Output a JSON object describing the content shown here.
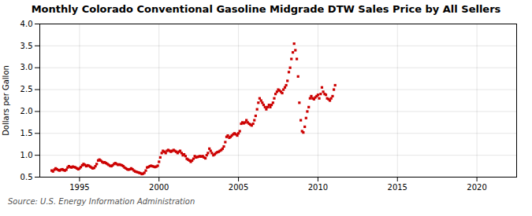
{
  "chart_data": {
    "type": "scatter",
    "title": "Monthly Colorado Conventional Gasoline Midgrade DTW Sales Price by All Sellers",
    "ylabel": "Dollars per Gallon",
    "source": "Source: U.S. Energy Information Administration",
    "color": "#CC0000",
    "marker": "square",
    "grid": true,
    "xlim": [
      1992.5,
      2022.5
    ],
    "ylim": [
      0.5,
      4.0
    ],
    "xticks": [
      1995,
      2000,
      2005,
      2010,
      2015,
      2020
    ],
    "yticks": [
      0.5,
      {
        "value": 1.0,
        "label": "1.0"
      },
      1.5,
      {
        "value": 2.0,
        "label": "2.0"
      },
      2.5,
      {
        "value": 3.0,
        "label": "3.0"
      },
      3.5,
      {
        "value": 4.0,
        "label": "4.0"
      }
    ],
    "x": [
      1993.25,
      1993.33,
      1993.42,
      1993.5,
      1993.58,
      1993.67,
      1993.75,
      1993.83,
      1993.92,
      1994.0,
      1994.08,
      1994.17,
      1994.25,
      1994.33,
      1994.42,
      1994.5,
      1994.58,
      1994.67,
      1994.75,
      1994.83,
      1994.92,
      1995.0,
      1995.08,
      1995.17,
      1995.25,
      1995.33,
      1995.42,
      1995.5,
      1995.58,
      1995.67,
      1995.75,
      1995.83,
      1995.92,
      1996.0,
      1996.08,
      1996.17,
      1996.25,
      1996.33,
      1996.42,
      1996.5,
      1996.58,
      1996.67,
      1996.75,
      1996.83,
      1996.92,
      1997.0,
      1997.08,
      1997.17,
      1997.25,
      1997.33,
      1997.42,
      1997.5,
      1997.58,
      1997.67,
      1997.75,
      1997.83,
      1997.92,
      1998.0,
      1998.08,
      1998.17,
      1998.25,
      1998.33,
      1998.42,
      1998.5,
      1998.58,
      1998.67,
      1998.75,
      1998.83,
      1998.92,
      1999.0,
      1999.08,
      1999.17,
      1999.25,
      1999.33,
      1999.42,
      1999.5,
      1999.58,
      1999.67,
      1999.75,
      1999.83,
      1999.92,
      2000.0,
      2000.08,
      2000.17,
      2000.25,
      2000.33,
      2000.42,
      2000.5,
      2000.58,
      2000.67,
      2000.75,
      2000.83,
      2000.92,
      2001.0,
      2001.08,
      2001.17,
      2001.25,
      2001.33,
      2001.42,
      2001.5,
      2001.58,
      2001.67,
      2001.75,
      2001.83,
      2001.92,
      2002.0,
      2002.08,
      2002.17,
      2002.25,
      2002.33,
      2002.42,
      2002.5,
      2002.58,
      2002.67,
      2002.75,
      2002.83,
      2002.92,
      2003.0,
      2003.08,
      2003.17,
      2003.25,
      2003.33,
      2003.42,
      2003.5,
      2003.58,
      2003.67,
      2003.75,
      2003.83,
      2003.92,
      2004.0,
      2004.08,
      2004.17,
      2004.25,
      2004.33,
      2004.42,
      2004.5,
      2004.58,
      2004.67,
      2004.75,
      2004.83,
      2004.92,
      2005.0,
      2005.08,
      2005.17,
      2005.25,
      2005.33,
      2005.42,
      2005.5,
      2005.58,
      2005.67,
      2005.75,
      2005.83,
      2005.92,
      2006.0,
      2006.08,
      2006.17,
      2006.25,
      2006.33,
      2006.42,
      2006.5,
      2006.58,
      2006.67,
      2006.75,
      2006.83,
      2006.92,
      2007.0,
      2007.08,
      2007.17,
      2007.25,
      2007.33,
      2007.42,
      2007.5,
      2007.58,
      2007.67,
      2007.75,
      2007.83,
      2007.92,
      2008.0,
      2008.08,
      2008.17,
      2008.25,
      2008.33,
      2008.42,
      2008.5,
      2008.58,
      2008.67,
      2008.75,
      2008.83,
      2008.92,
      2009.0,
      2009.08,
      2009.17,
      2009.25,
      2009.33,
      2009.42,
      2009.5,
      2009.58,
      2009.67,
      2009.75,
      2009.83,
      2009.92,
      2010.0,
      2010.08,
      2010.17,
      2010.25,
      2010.33,
      2010.42,
      2010.5,
      2010.58,
      2010.67,
      2010.75,
      2010.83,
      2010.92,
      2011.0,
      2011.08
    ],
    "values": [
      0.65,
      0.63,
      0.67,
      0.7,
      0.68,
      0.66,
      0.65,
      0.67,
      0.68,
      0.66,
      0.65,
      0.67,
      0.72,
      0.75,
      0.73,
      0.72,
      0.74,
      0.73,
      0.72,
      0.7,
      0.68,
      0.7,
      0.73,
      0.77,
      0.8,
      0.78,
      0.75,
      0.77,
      0.76,
      0.74,
      0.72,
      0.7,
      0.71,
      0.75,
      0.8,
      0.88,
      0.9,
      0.88,
      0.85,
      0.83,
      0.84,
      0.82,
      0.8,
      0.78,
      0.76,
      0.75,
      0.77,
      0.8,
      0.82,
      0.8,
      0.78,
      0.79,
      0.78,
      0.77,
      0.75,
      0.72,
      0.7,
      0.68,
      0.67,
      0.68,
      0.7,
      0.68,
      0.65,
      0.63,
      0.62,
      0.61,
      0.6,
      0.59,
      0.57,
      0.58,
      0.6,
      0.65,
      0.72,
      0.73,
      0.75,
      0.76,
      0.75,
      0.74,
      0.73,
      0.74,
      0.76,
      0.85,
      0.95,
      1.05,
      1.1,
      1.08,
      1.05,
      1.1,
      1.12,
      1.1,
      1.08,
      1.1,
      1.12,
      1.1,
      1.08,
      1.05,
      1.08,
      1.1,
      1.05,
      1.0,
      1.02,
      0.98,
      0.92,
      0.9,
      0.88,
      0.85,
      0.88,
      0.92,
      0.98,
      0.95,
      0.96,
      0.97,
      0.98,
      0.97,
      0.98,
      0.95,
      0.93,
      1.0,
      1.05,
      1.15,
      1.1,
      1.05,
      1.0,
      1.02,
      1.05,
      1.07,
      1.08,
      1.1,
      1.12,
      1.15,
      1.2,
      1.3,
      1.42,
      1.45,
      1.4,
      1.42,
      1.45,
      1.48,
      1.5,
      1.48,
      1.45,
      1.5,
      1.55,
      1.72,
      1.75,
      1.73,
      1.75,
      1.8,
      1.75,
      1.72,
      1.7,
      1.68,
      1.72,
      1.8,
      1.9,
      2.05,
      2.2,
      2.3,
      2.25,
      2.2,
      2.15,
      2.1,
      2.05,
      2.1,
      2.15,
      2.1,
      2.15,
      2.2,
      2.3,
      2.4,
      2.45,
      2.5,
      2.48,
      2.45,
      2.42,
      2.5,
      2.55,
      2.6,
      2.7,
      2.9,
      3.0,
      3.2,
      3.35,
      3.55,
      3.4,
      3.2,
      2.8,
      2.2,
      1.8,
      1.55,
      1.52,
      1.65,
      1.85,
      2.0,
      2.1,
      2.3,
      2.35,
      2.3,
      2.28,
      2.32,
      2.35,
      2.38,
      2.3,
      2.4,
      2.55,
      2.45,
      2.4,
      2.38,
      2.3,
      2.28,
      2.25,
      2.3,
      2.35,
      2.5,
      2.6
    ]
  }
}
